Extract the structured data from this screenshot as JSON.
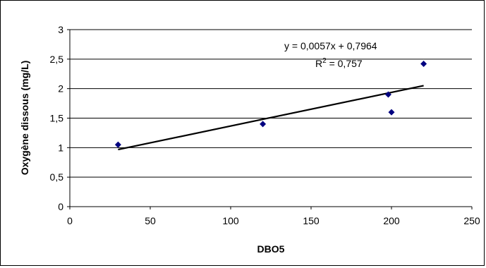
{
  "chart_data": {
    "type": "scatter",
    "title": "",
    "xlabel": "DBO5",
    "ylabel": "Oxygène dissous (mg/L)",
    "xlim": [
      0,
      250
    ],
    "ylim": [
      0,
      3
    ],
    "x_ticks": [
      "0",
      "50",
      "100",
      "150",
      "200",
      "250"
    ],
    "y_ticks": [
      "0",
      "0,5",
      "1",
      "1,5",
      "2",
      "2,5",
      "3"
    ],
    "grid": "horizontal",
    "series": [
      {
        "points": [
          {
            "x": 30,
            "y": 1.05
          },
          {
            "x": 120,
            "y": 1.4
          },
          {
            "x": 198,
            "y": 1.9
          },
          {
            "x": 200,
            "y": 1.6
          },
          {
            "x": 220,
            "y": 2.42
          }
        ],
        "color": "#000080",
        "marker": "diamond"
      }
    ],
    "trendline": {
      "slope": 0.0057,
      "intercept": 0.7964,
      "x_range": [
        30,
        220
      ],
      "color": "#000000"
    },
    "annotations": {
      "equation": "y = 0,0057x + 0,7964",
      "r2_prefix": "R",
      "r2_sup": "2",
      "r2_value": " = 0,757"
    }
  }
}
